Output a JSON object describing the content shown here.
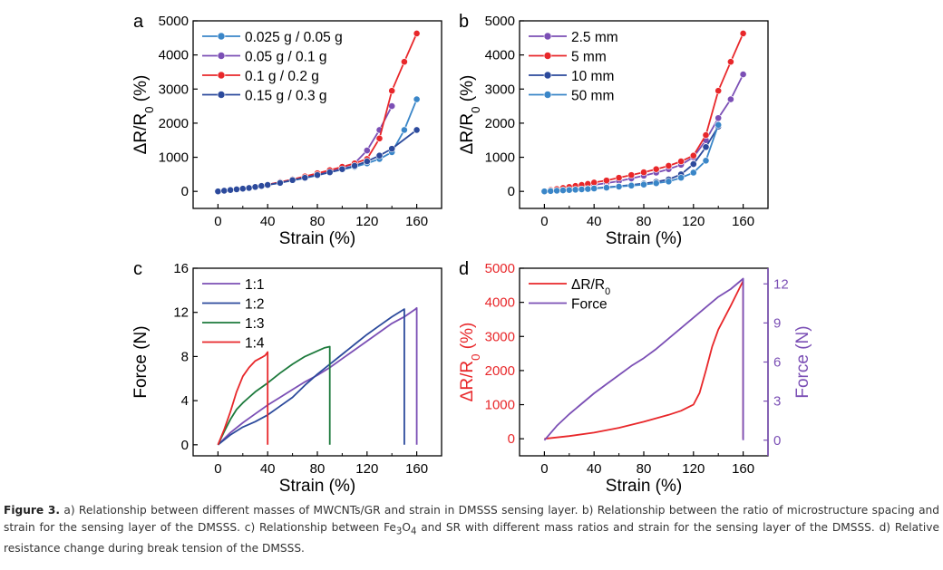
{
  "colors": {
    "red": "#e8272a",
    "purple": "#7b4fb5",
    "navy": "#2c4a9c",
    "lightblue": "#3a86c8",
    "green": "#1d7a3c",
    "axis": "#000000"
  },
  "panels": [
    {
      "id": "a",
      "label": "a",
      "chart_data": {
        "type": "line",
        "xlabel": "Strain (%)",
        "ylabel": "ΔR/R0 (%)",
        "xlim": [
          -20,
          180
        ],
        "ylim": [
          -500,
          5000
        ],
        "xticks": [
          0,
          40,
          80,
          120,
          160
        ],
        "yticks": [
          0,
          1000,
          2000,
          3000,
          4000,
          5000
        ],
        "legend_position": "top-left",
        "markers": true,
        "series": [
          {
            "name": "0.025 g / 0.05 g",
            "color": "#3a86c8",
            "x": [
              0,
              5,
              10,
              15,
              20,
              25,
              30,
              35,
              40,
              50,
              60,
              70,
              80,
              90,
              100,
              110,
              120,
              130,
              140,
              150,
              160
            ],
            "y": [
              0,
              20,
              40,
              60,
              80,
              100,
              130,
              160,
              190,
              250,
              320,
              390,
              470,
              560,
              640,
              720,
              820,
              950,
              1150,
              1800,
              2700
            ]
          },
          {
            "name": "0.05 g / 0.1 g",
            "color": "#7b4fb5",
            "x": [
              0,
              5,
              10,
              15,
              20,
              25,
              30,
              35,
              40,
              50,
              60,
              70,
              80,
              90,
              100,
              110,
              120,
              130,
              140
            ],
            "y": [
              0,
              20,
              40,
              60,
              80,
              110,
              140,
              170,
              200,
              270,
              350,
              430,
              510,
              600,
              700,
              820,
              1200,
              1800,
              2500
            ]
          },
          {
            "name": "0.1 g / 0.2 g",
            "color": "#e8272a",
            "x": [
              0,
              5,
              10,
              15,
              20,
              25,
              30,
              35,
              40,
              50,
              60,
              70,
              80,
              90,
              100,
              110,
              120,
              130,
              140,
              150,
              160
            ],
            "y": [
              0,
              20,
              40,
              60,
              80,
              110,
              140,
              170,
              200,
              270,
              350,
              440,
              530,
              620,
              720,
              820,
              950,
              1550,
              2950,
              3800,
              4630
            ]
          },
          {
            "name": "0.15 g / 0.3 g",
            "color": "#2c4a9c",
            "x": [
              0,
              5,
              10,
              15,
              20,
              25,
              30,
              35,
              40,
              50,
              60,
              70,
              80,
              90,
              100,
              110,
              120,
              130,
              140,
              160
            ],
            "y": [
              0,
              20,
              40,
              60,
              80,
              100,
              130,
              160,
              190,
              250,
              330,
              400,
              480,
              560,
              650,
              750,
              880,
              1050,
              1250,
              1800
            ]
          }
        ]
      }
    },
    {
      "id": "b",
      "label": "b",
      "chart_data": {
        "type": "line",
        "xlabel": "Strain (%)",
        "ylabel": "ΔR/R0 (%)",
        "xlim": [
          -20,
          180
        ],
        "ylim": [
          -500,
          5000
        ],
        "xticks": [
          0,
          40,
          80,
          120,
          160
        ],
        "yticks": [
          0,
          1000,
          2000,
          3000,
          4000,
          5000
        ],
        "legend_position": "top-left",
        "markers": true,
        "series": [
          {
            "name": "2.5 mm",
            "color": "#7b4fb5",
            "x": [
              0,
              5,
              10,
              15,
              20,
              25,
              30,
              35,
              40,
              50,
              60,
              70,
              80,
              90,
              100,
              110,
              120,
              130,
              140,
              150,
              160
            ],
            "y": [
              0,
              20,
              40,
              60,
              80,
              100,
              130,
              160,
              190,
              240,
              300,
              380,
              460,
              550,
              650,
              780,
              1000,
              1500,
              2150,
              2700,
              3430
            ]
          },
          {
            "name": "5 mm",
            "color": "#e8272a",
            "x": [
              0,
              5,
              10,
              15,
              20,
              25,
              30,
              35,
              40,
              50,
              60,
              70,
              80,
              90,
              100,
              110,
              120,
              130,
              140,
              150,
              160
            ],
            "y": [
              0,
              40,
              70,
              100,
              130,
              160,
              190,
              220,
              260,
              320,
              400,
              480,
              560,
              650,
              750,
              880,
              1050,
              1650,
              2950,
              3800,
              4630
            ]
          },
          {
            "name": "10 mm",
            "color": "#2c4a9c",
            "x": [
              0,
              5,
              10,
              15,
              20,
              25,
              30,
              35,
              40,
              50,
              60,
              70,
              80,
              90,
              100,
              110,
              120,
              130,
              140
            ],
            "y": [
              0,
              10,
              20,
              30,
              40,
              50,
              60,
              75,
              90,
              120,
              150,
              190,
              230,
              280,
              350,
              500,
              800,
              1300,
              1900
            ]
          },
          {
            "name": "50 mm",
            "color": "#3a86c8",
            "x": [
              0,
              5,
              10,
              15,
              20,
              25,
              30,
              35,
              40,
              50,
              60,
              70,
              80,
              90,
              100,
              110,
              120,
              130,
              140
            ],
            "y": [
              0,
              10,
              20,
              30,
              40,
              50,
              60,
              70,
              85,
              110,
              140,
              170,
              200,
              240,
              290,
              400,
              550,
              900,
              1950
            ]
          }
        ]
      }
    },
    {
      "id": "c",
      "label": "c",
      "chart_data": {
        "type": "line",
        "xlabel": "Strain (%)",
        "ylabel": "Force (N)",
        "xlim": [
          -20,
          180
        ],
        "ylim": [
          -1,
          16
        ],
        "xticks": [
          0,
          40,
          80,
          120,
          160
        ],
        "yticks": [
          0,
          4,
          8,
          12,
          16
        ],
        "legend_position": "top-left",
        "markers": false,
        "series": [
          {
            "name": "1:1",
            "color": "#7b4fb5",
            "x": [
              0,
              10,
              20,
              30,
              40,
              50,
              60,
              70,
              80,
              90,
              100,
              110,
              120,
              130,
              140,
              150,
              159,
              160,
              160
            ],
            "y": [
              0,
              1.1,
              2,
              2.8,
              3.6,
              4.3,
              5,
              5.7,
              6.3,
              7,
              7.8,
              8.6,
              9.4,
              10.2,
              11,
              11.6,
              12.3,
              12.4,
              0
            ]
          },
          {
            "name": "1:2",
            "color": "#2c4a9c",
            "x": [
              0,
              10,
              20,
              30,
              40,
              50,
              60,
              70,
              80,
              90,
              100,
              110,
              120,
              130,
              140,
              150,
              150
            ],
            "y": [
              0,
              0.9,
              1.6,
              2.1,
              2.7,
              3.5,
              4.3,
              5.4,
              6.4,
              7.3,
              8.2,
              9.1,
              10,
              10.8,
              11.6,
              12.3,
              0
            ]
          },
          {
            "name": "1:3",
            "color": "#1d7a3c",
            "x": [
              0,
              5,
              10,
              15,
              20,
              25,
              30,
              40,
              50,
              60,
              70,
              80,
              86,
              90,
              90
            ],
            "y": [
              0,
              1.2,
              2.3,
              3.2,
              3.8,
              4.3,
              4.8,
              5.6,
              6.5,
              7.3,
              8,
              8.5,
              8.8,
              8.9,
              0
            ]
          },
          {
            "name": "1:4",
            "color": "#e8272a",
            "x": [
              0,
              5,
              10,
              15,
              20,
              25,
              30,
              35,
              38,
              40,
              40
            ],
            "y": [
              0,
              1.4,
              3,
              4.8,
              6.2,
              7,
              7.6,
              7.9,
              8.1,
              8.4,
              0
            ]
          }
        ]
      }
    },
    {
      "id": "d",
      "label": "d",
      "chart_data": {
        "type": "line",
        "xlabel": "Strain (%)",
        "ylabel": "ΔR/R0 (%)",
        "y2label": "Force (N)",
        "xlim": [
          -20,
          180
        ],
        "ylim": [
          -500,
          5000
        ],
        "y2lim": [
          -1.2,
          13.2
        ],
        "xticks": [
          0,
          40,
          80,
          120,
          160
        ],
        "yticks": [
          0,
          1000,
          2000,
          3000,
          4000,
          5000
        ],
        "y2ticks": [
          0,
          3,
          6,
          9,
          12
        ],
        "legend_position": "top-left",
        "markers": false,
        "series": [
          {
            "name": "ΔR/R0",
            "color": "#e8272a",
            "axis": "left",
            "x": [
              0,
              20,
              40,
              60,
              80,
              100,
              110,
              120,
              125,
              130,
              135,
              140,
              150,
              160,
              160
            ],
            "y": [
              0,
              80,
              180,
              320,
              500,
              700,
              820,
              1000,
              1350,
              2000,
              2700,
              3200,
              3900,
              4630,
              0
            ]
          },
          {
            "name": "Force",
            "color": "#7b4fb5",
            "axis": "right",
            "x": [
              0,
              10,
              20,
              30,
              40,
              50,
              60,
              70,
              80,
              90,
              100,
              110,
              120,
              130,
              140,
              150,
              160,
              160
            ],
            "y": [
              0,
              1.1,
              2,
              2.8,
              3.6,
              4.3,
              5,
              5.7,
              6.3,
              7,
              7.8,
              8.6,
              9.4,
              10.2,
              11,
              11.6,
              12.4,
              0
            ]
          }
        ]
      }
    }
  ],
  "caption": {
    "label": "Figure 3.",
    "text": " a) Relationship between different masses of MWCNTs/GR and strain in DMSSS sensing layer. b) Relationship between the ratio of microstructure spacing and strain for the sensing layer of the DMSSS. c) Relationship between Fe3O4 and SR with different mass ratios and strain for the sensing layer of the DMSSS. d) Relative resistance change during break tension of the DMSSS."
  }
}
